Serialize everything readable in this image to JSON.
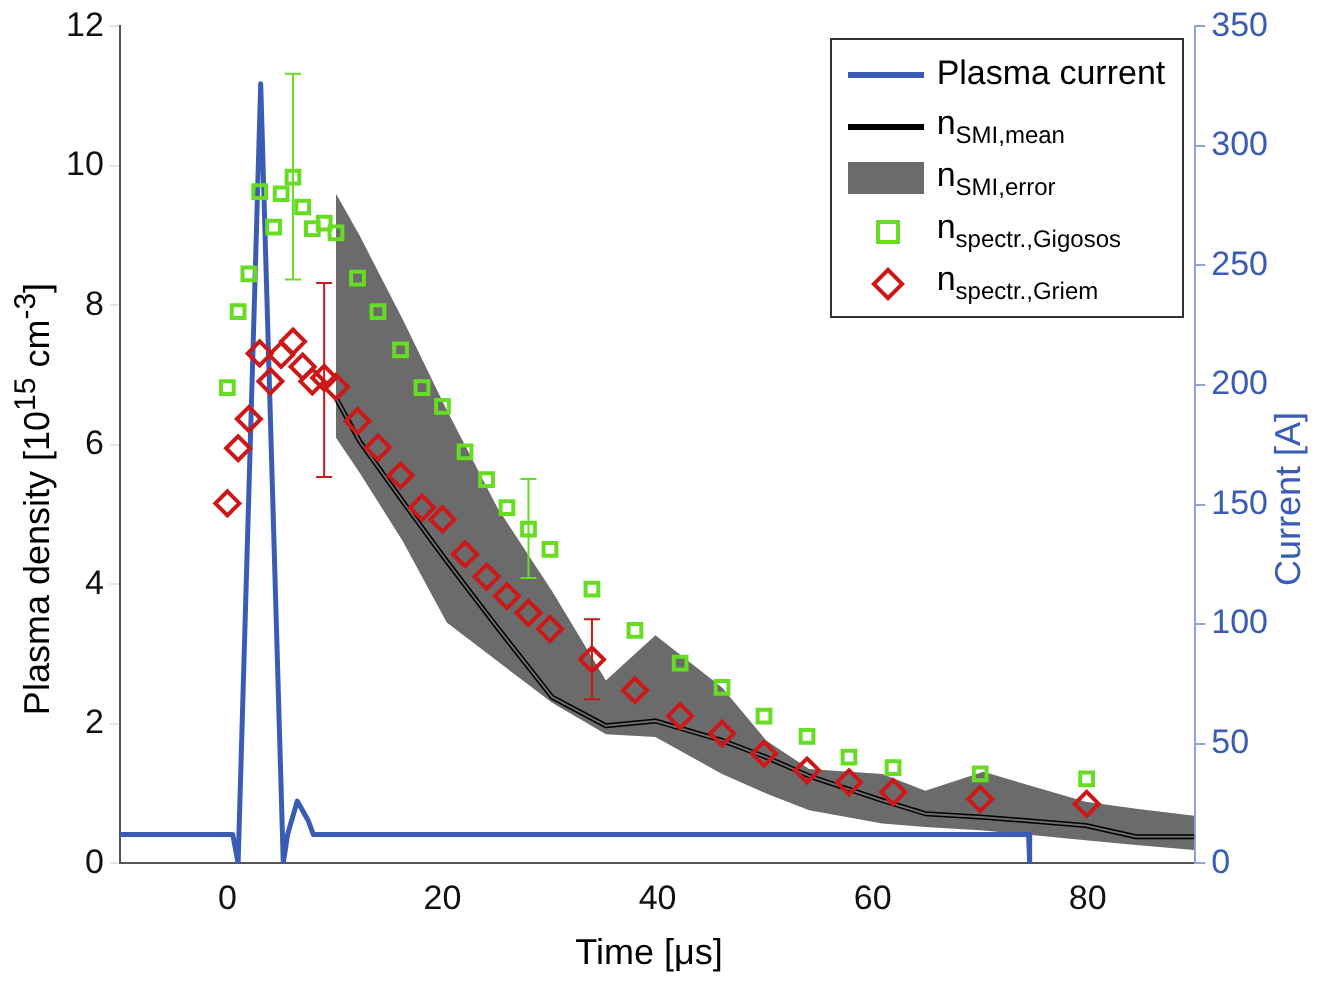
{
  "chart_data": {
    "type": "scatter",
    "xlabel": "Time [μs]",
    "ylabel": "Plasma density [10$^{15}$ cm$^{-3}$]",
    "y2label": "Current [A]",
    "xlim": [
      -10,
      90
    ],
    "xticks": [
      0,
      20,
      40,
      60,
      80
    ],
    "ylim": [
      0,
      12
    ],
    "yticks": [
      0,
      2,
      4,
      6,
      8,
      10,
      12
    ],
    "y2lim": [
      0,
      350
    ],
    "y2ticks": [
      0,
      50,
      100,
      150,
      200,
      250,
      300,
      350
    ],
    "grid": false,
    "legend": "top right",
    "series": [
      {
        "name": "Plasma current",
        "type": "line",
        "axis": "y2",
        "color": "#3a5cb4",
        "marker": "none",
        "x": [
          -10,
          0.5,
          1.0,
          3.1,
          5.2,
          5.6,
          6.5,
          7.5,
          8,
          74.5,
          74.6
        ],
        "values": [
          12,
          12,
          0,
          326,
          0,
          12,
          26,
          18,
          12,
          12,
          0
        ]
      },
      {
        "name": "n$_{SMI,mean}$",
        "type": "line",
        "color": "#000000",
        "marker": "none",
        "x": [
          10.1,
          12.3,
          16.3,
          20.4,
          25.1,
          30.2,
          35.2,
          39.8,
          46.0,
          50.1,
          54.1,
          60.9,
          64.9,
          70.3,
          79.8,
          84.5,
          89.9
        ],
        "values": [
          6.67,
          6.05,
          5.19,
          4.33,
          3.38,
          2.38,
          1.97,
          2.04,
          1.76,
          1.52,
          1.25,
          0.9,
          0.71,
          0.66,
          0.54,
          0.38,
          0.38
        ]
      },
      {
        "name": "n$_{SMI,error}$",
        "type": "line",
        "color": "#6b6b6b",
        "x": [
          10.1,
          12.3,
          16.3,
          20.4,
          25.1,
          30.2,
          35.2,
          39.8,
          46.0,
          50.1,
          54.1,
          60.9,
          64.9,
          70.3,
          79.8,
          84.5,
          89.9
        ],
        "values": [
          6.67,
          6.05,
          5.19,
          4.33,
          3.38,
          2.38,
          1.97,
          2.04,
          1.76,
          1.52,
          1.25,
          0.9,
          0.71,
          0.66,
          0.54,
          0.38,
          0.38
        ],
        "lower": [
          6.1,
          5.6,
          4.62,
          3.45,
          2.9,
          2.3,
          1.85,
          1.81,
          1.28,
          1.0,
          0.76,
          0.57,
          0.52,
          0.47,
          0.33,
          0.26,
          0.19
        ],
        "upper": [
          9.6,
          9.0,
          7.8,
          6.5,
          5.1,
          3.9,
          2.62,
          3.27,
          2.52,
          1.76,
          1.35,
          1.28,
          1.04,
          1.31,
          0.88,
          0.78,
          0.68
        ]
      },
      {
        "name": "n$_{spectr.,Gigosos}$",
        "color": "#66dd22",
        "marker": "square",
        "x": [
          0,
          1,
          2,
          3,
          4.3,
          5,
          6.1,
          7,
          7.9,
          9,
          10.1,
          12.1,
          14,
          16.1,
          18.1,
          20,
          22.1,
          24.1,
          26,
          28,
          30,
          33.9,
          37.9,
          42.1,
          46,
          49.9,
          53.9,
          57.8,
          61.9,
          70,
          79.9
        ],
        "values": [
          6.82,
          7.91,
          8.45,
          9.63,
          9.12,
          9.6,
          9.84,
          9.41,
          9.1,
          9.18,
          9.04,
          8.39,
          7.91,
          7.36,
          6.82,
          6.55,
          5.9,
          5.5,
          5.1,
          4.79,
          4.5,
          3.93,
          3.34,
          2.87,
          2.52,
          2.11,
          1.82,
          1.52,
          1.37,
          1.28,
          1.21
        ],
        "errors": [
          null,
          null,
          null,
          null,
          null,
          null,
          [
            8.37,
            11.32
          ],
          null,
          null,
          null,
          null,
          null,
          null,
          null,
          null,
          null,
          null,
          null,
          null,
          [
            4.09,
            5.51
          ],
          null,
          null,
          null,
          null,
          null,
          null,
          null,
          null,
          null,
          null,
          null
        ]
      },
      {
        "name": "n$_{spectr.,Griem}$",
        "color": "#cc1818",
        "marker": "diamond",
        "x": [
          0,
          1,
          2,
          3,
          4,
          5,
          6.1,
          7,
          7.9,
          9,
          10.1,
          12.1,
          14,
          16.1,
          18.1,
          20,
          22.1,
          24.1,
          26,
          28,
          30,
          33.9,
          37.9,
          42.1,
          46,
          49.9,
          53.9,
          57.8,
          61.9,
          70,
          79.9
        ],
        "values": [
          5.16,
          5.95,
          6.37,
          7.31,
          6.91,
          7.29,
          7.48,
          7.12,
          6.91,
          6.96,
          6.83,
          6.34,
          5.96,
          5.56,
          5.1,
          4.93,
          4.43,
          4.11,
          3.83,
          3.59,
          3.36,
          2.92,
          2.48,
          2.11,
          1.86,
          1.57,
          1.33,
          1.16,
          1.02,
          0.92,
          0.85
        ],
        "errors": [
          null,
          null,
          null,
          null,
          null,
          null,
          null,
          null,
          null,
          [
            5.54,
            8.32
          ],
          null,
          null,
          null,
          null,
          null,
          null,
          null,
          null,
          null,
          null,
          null,
          [
            2.35,
            3.5
          ],
          null,
          null,
          null,
          null,
          null,
          null,
          null,
          null,
          null
        ]
      }
    ]
  }
}
